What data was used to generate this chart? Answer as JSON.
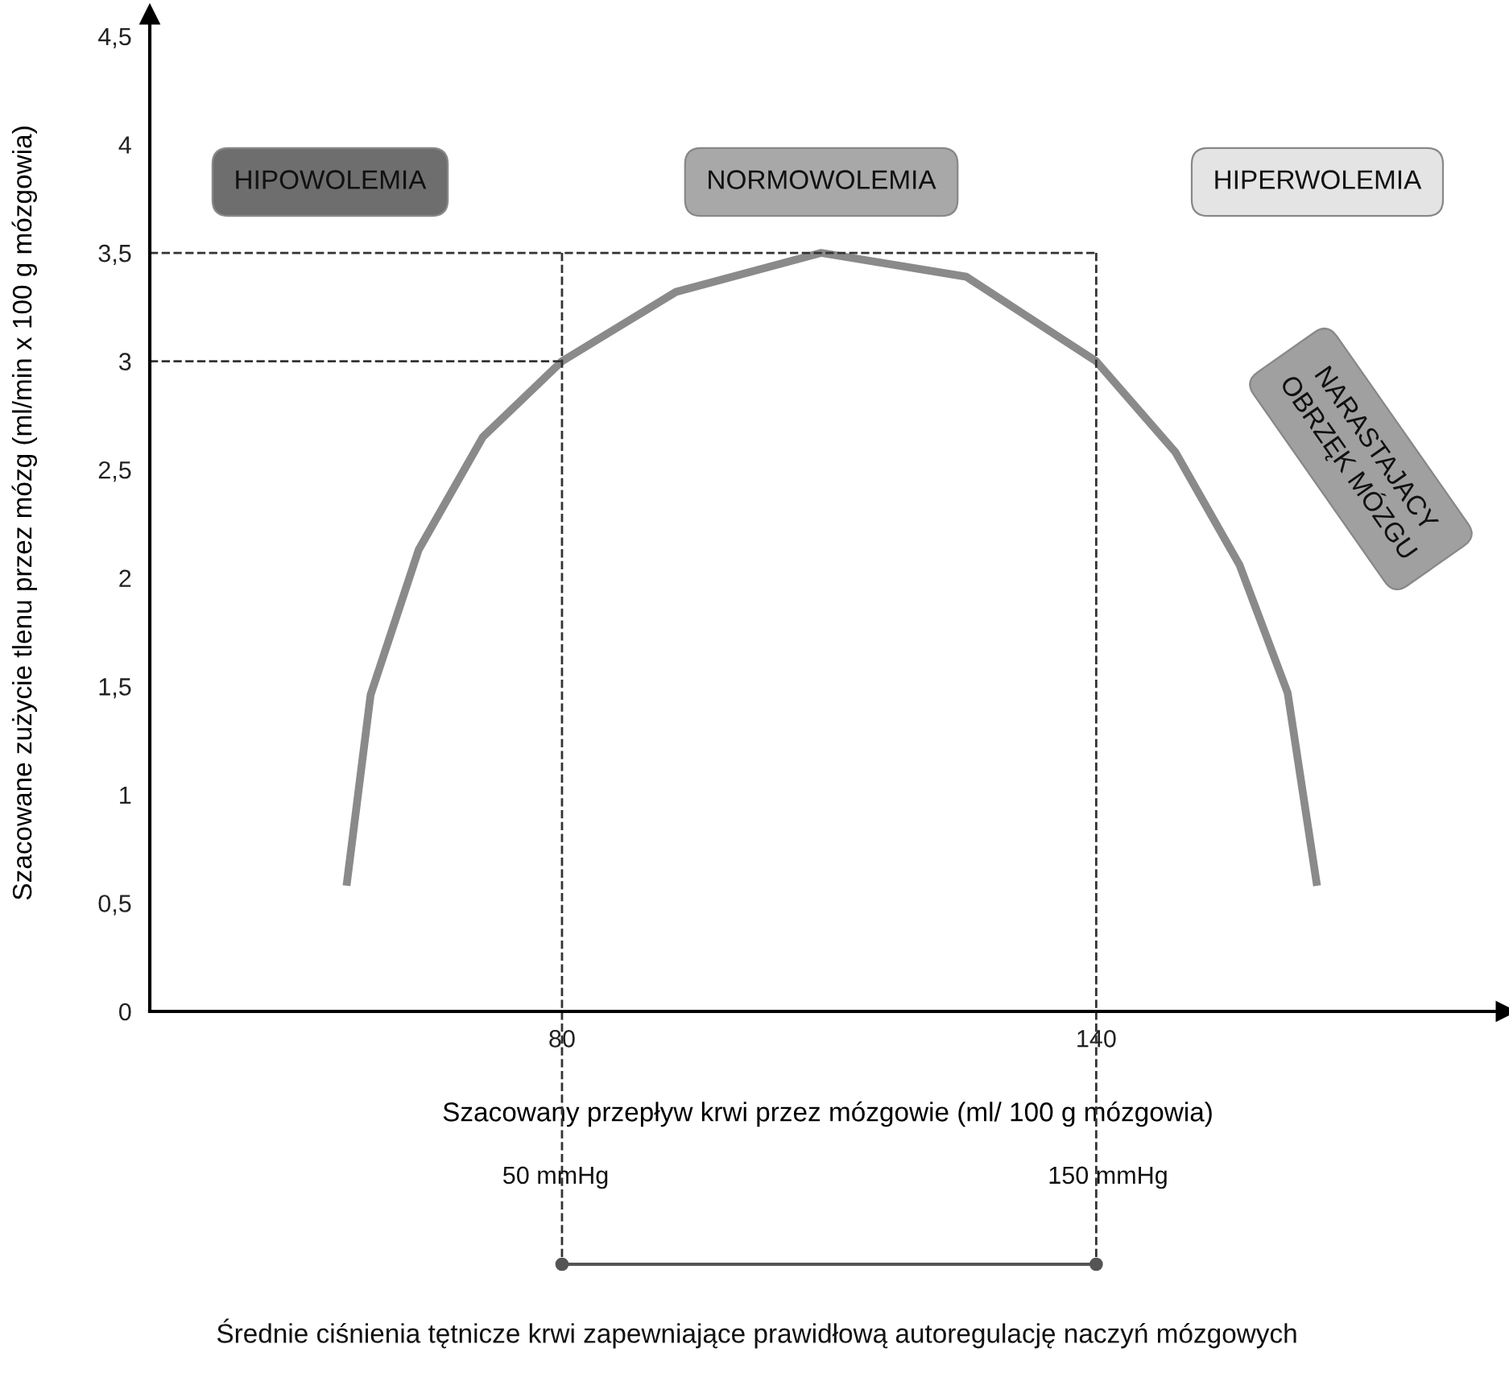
{
  "chart_data": {
    "type": "line",
    "xlabel": "Szacowany przepływ krwi przez mózgowie (ml/ 100 g mózgowia)",
    "ylabel": "Szacowane zużycie tlenu przez mózg (ml/min x 100 g mózgowia)",
    "x": [
      55.8,
      58.5,
      63.9,
      71.1,
      80,
      92.8,
      109.1,
      125.4,
      140,
      148.9,
      156.1,
      161.5,
      164.8
    ],
    "series": [
      {
        "color": "#8a8a8a",
        "values": [
          0.58,
          1.46,
          2.13,
          2.65,
          3.0,
          3.32,
          3.5,
          3.39,
          3.0,
          2.58,
          2.06,
          1.47,
          0.58
        ]
      }
    ],
    "xlim": [
      33.7,
      186
    ],
    "xticks": [
      80,
      140
    ],
    "ylim": [
      0,
      4.6
    ],
    "yticks": [
      0,
      {
        "value": 0.5,
        "label": "0,5"
      },
      1,
      {
        "value": 1.5,
        "label": "1,5"
      },
      2,
      {
        "value": 2.5,
        "label": "2,5"
      },
      3,
      {
        "value": 3.5,
        "label": "3,5"
      },
      4,
      {
        "value": 4.5,
        "label": "4,5"
      }
    ],
    "ref_lines": [
      {
        "axis": "x",
        "value": 80,
        "line_style": "dashed",
        "color": "#333333"
      },
      {
        "axis": "x",
        "value": 140,
        "line_style": "dashed",
        "color": "#333333"
      },
      {
        "axis": "y",
        "value": 3.5,
        "line_style": "dashed",
        "color": "#333333"
      },
      {
        "axis": "y",
        "value": 3,
        "line_style": "dashed",
        "color": "#333333"
      }
    ],
    "annotations": [
      "HIPOWOLEMIA",
      "NORMOWOLEMIA",
      "HIPERWOLEMIA",
      "NARASTAJACY\nOBRZĘK MÓZGU",
      "50 mmHg",
      "150 mmHg",
      "Średnie ciśnienia tętnicze krwi zapewniające prawidłową autoregulację naczyń mózgowych"
    ],
    "grid": false,
    "legend": false,
    "marker": "none",
    "line_style": "solid"
  }
}
